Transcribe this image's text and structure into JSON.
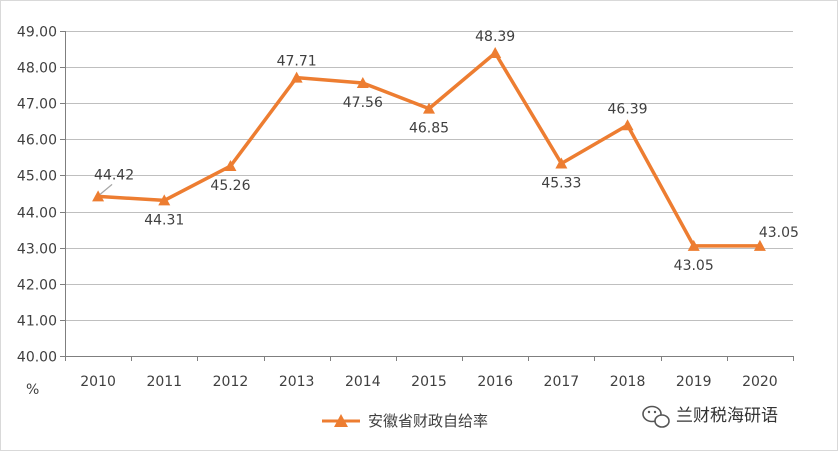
{
  "chart_data": {
    "type": "line",
    "x": [
      "2010",
      "2011",
      "2012",
      "2013",
      "2014",
      "2015",
      "2016",
      "2017",
      "2018",
      "2019",
      "2020"
    ],
    "series": [
      {
        "name": "安徽省财政自给率",
        "values": [
          44.42,
          44.31,
          45.26,
          47.71,
          47.56,
          46.85,
          48.39,
          45.33,
          46.39,
          43.05,
          43.05
        ],
        "color": "#ed7d31",
        "marker": "triangle"
      }
    ],
    "data_labels": [
      "44.42",
      "44.31",
      "45.26",
      "47.71",
      "47.56",
      "46.85",
      "48.39",
      "45.33",
      "46.39",
      "43.05",
      "43.05"
    ],
    "y_ticks": [
      "40.00",
      "41.00",
      "42.00",
      "43.00",
      "44.00",
      "45.00",
      "46.00",
      "47.00",
      "48.00",
      "49.00"
    ],
    "ylim": [
      40,
      49
    ],
    "ylabel": "%",
    "grid": true,
    "legend_position": "bottom"
  },
  "watermark": {
    "text": "兰财税海研语",
    "icon": "wechat-icon"
  }
}
